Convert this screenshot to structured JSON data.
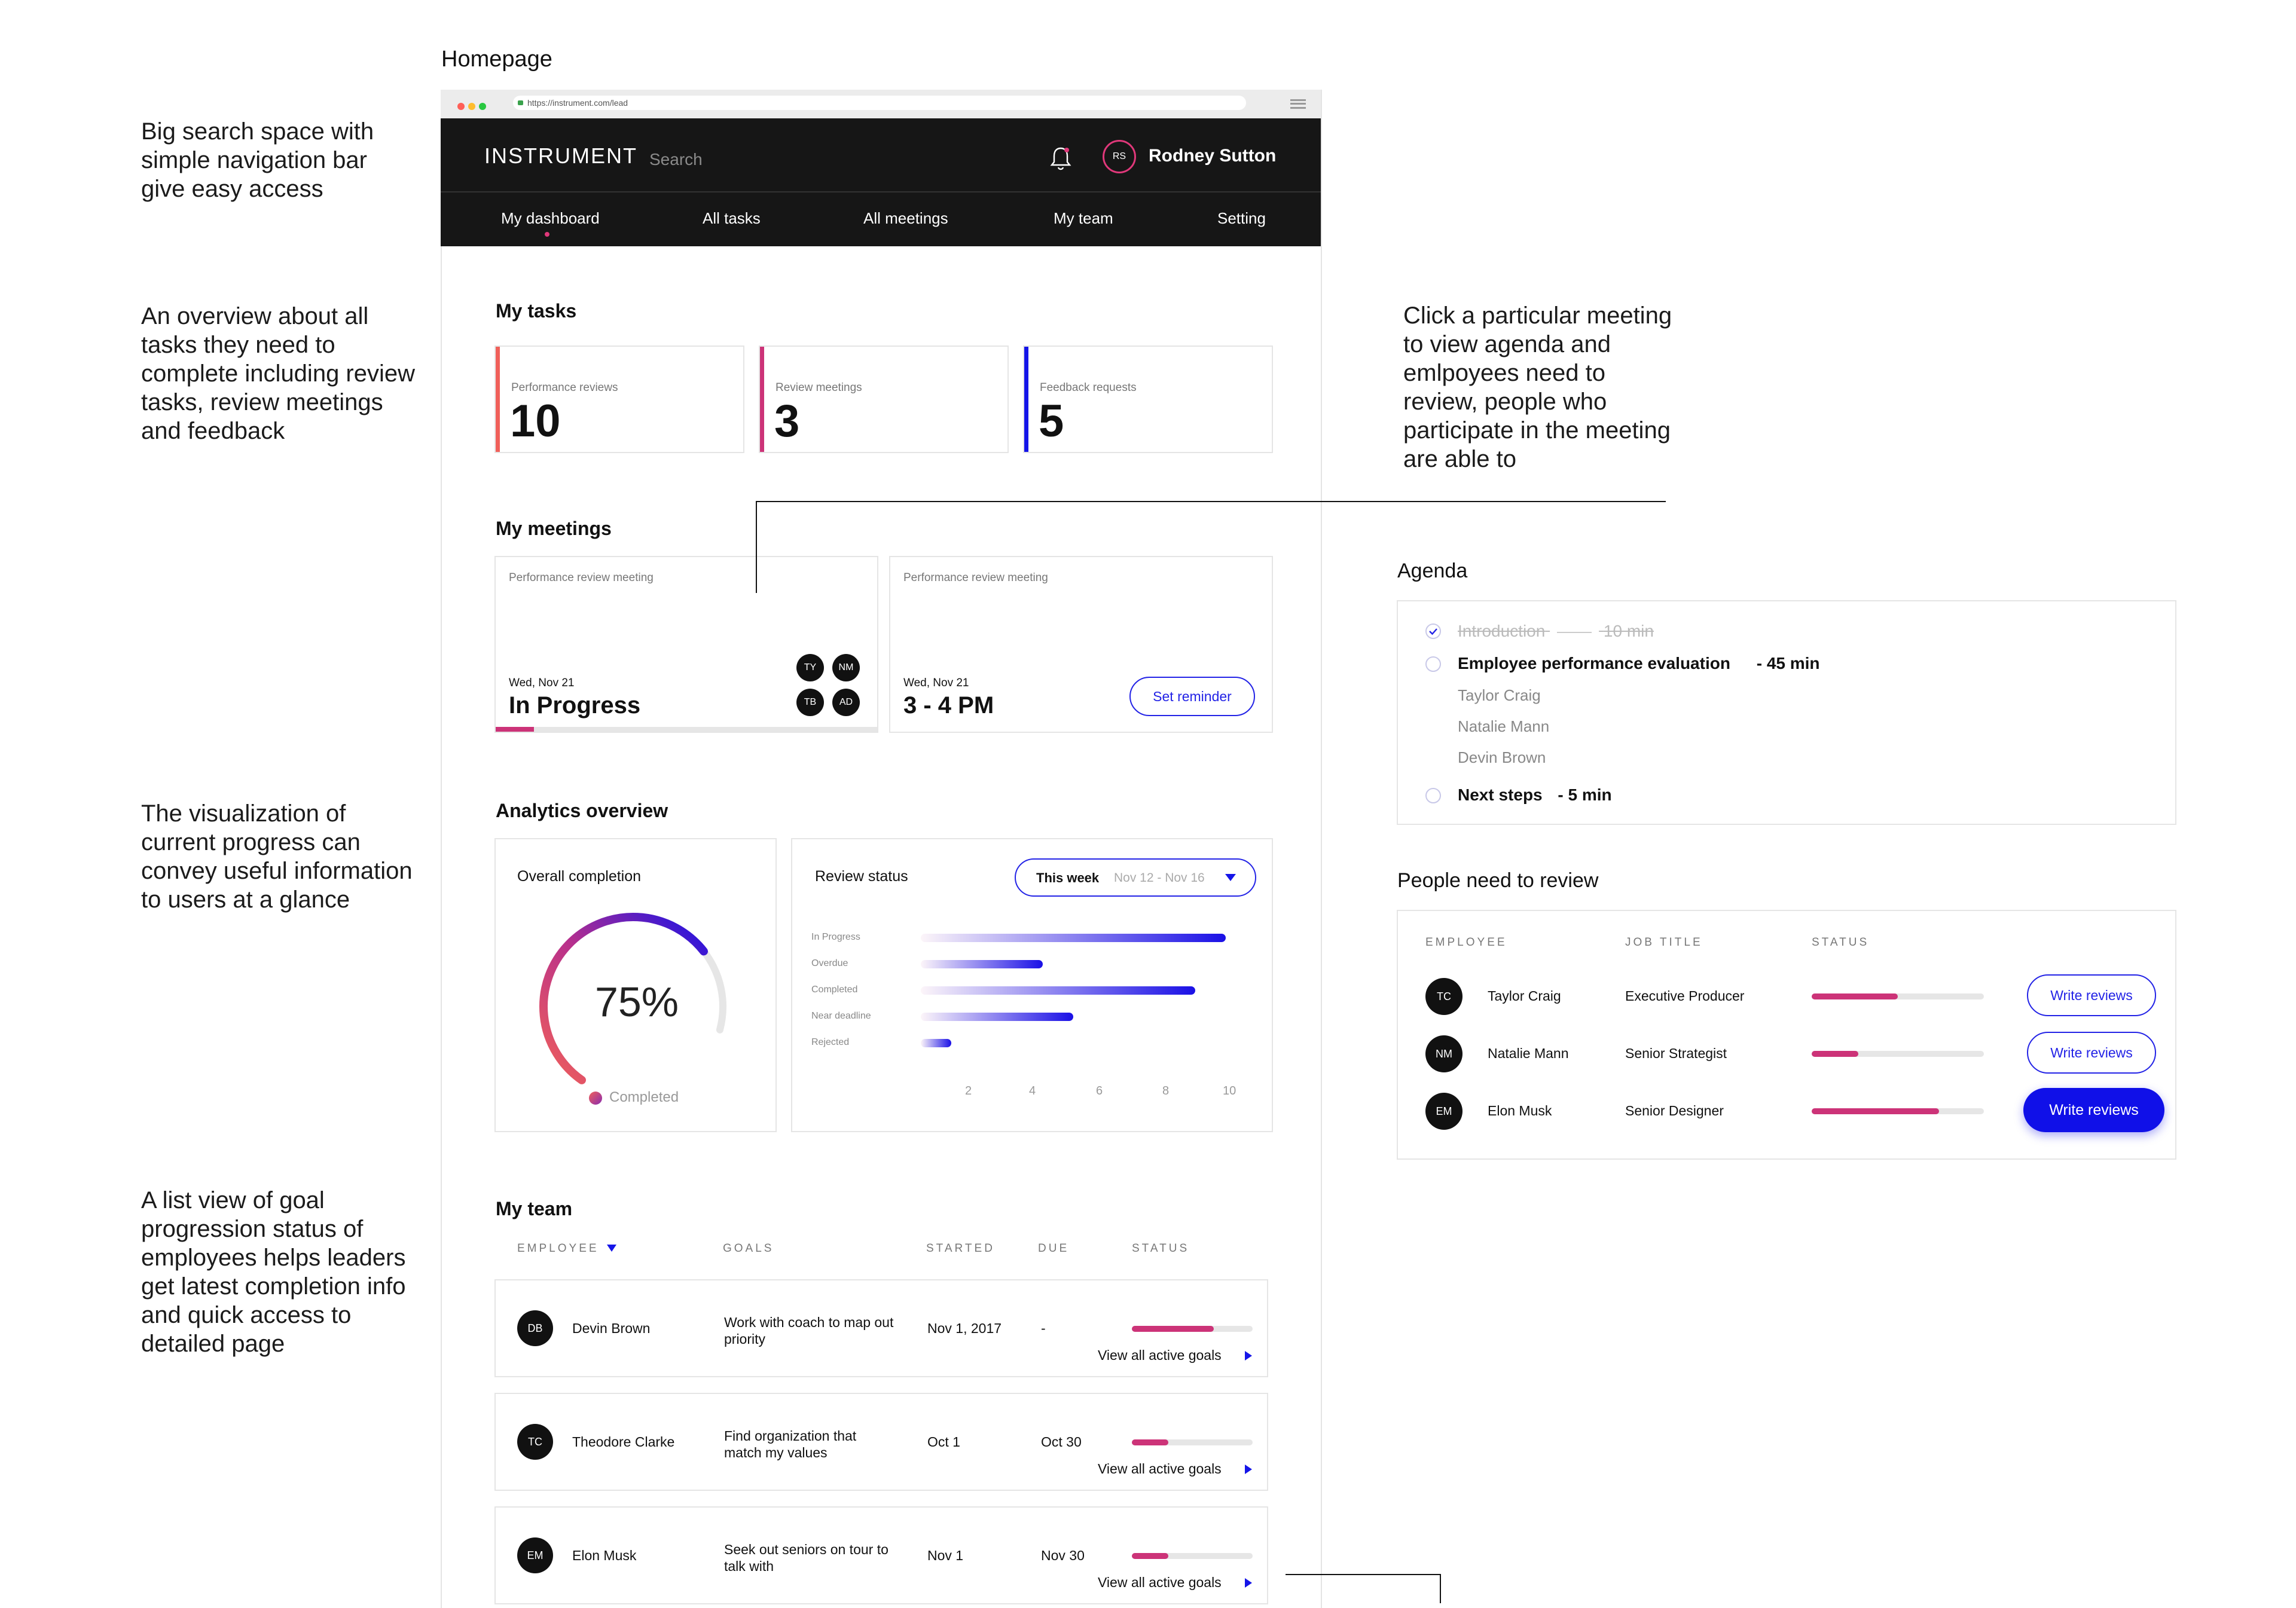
{
  "page_label": "Homepage",
  "annotations": {
    "search": "Big search space with simple navigation bar give easy access",
    "tasks": "An overview about all tasks they need to complete including review tasks, review meetings and feedback",
    "visualization": "The visualization of current progress can convey useful information to users at a glance",
    "list_view": "A list view of goal progression status of employees helps leaders get latest completion info and quick access to detailed page",
    "meeting": "Click a particular meeting to view agenda and emlpoyees need to review, people who participate in the meeting are able to"
  },
  "browser": {
    "url": "https://instrument.com/lead"
  },
  "header": {
    "brand": "INSTRUMENT",
    "search_placeholder": "Search",
    "user_initials": "RS",
    "user_name": "Rodney Sutton",
    "accent": "#e0387a"
  },
  "nav": {
    "tabs": [
      "My dashboard",
      "All tasks",
      "All meetings",
      "My team",
      "Setting"
    ],
    "active": "My dashboard"
  },
  "tasks": {
    "title": "My tasks",
    "cards": [
      {
        "label": "Performance reviews",
        "value": "10",
        "color": "#f0605a"
      },
      {
        "label": "Review meetings",
        "value": "3",
        "color": "#cc3378"
      },
      {
        "label": "Feedback requests",
        "value": "5",
        "color": "#1515e8"
      }
    ]
  },
  "meetings": {
    "title": "My meetings",
    "items": [
      {
        "label": "Performance review meeting",
        "date": "Wed, Nov 21",
        "status": "In Progress",
        "participants": [
          "TY",
          "NM",
          "TB",
          "AD"
        ],
        "progress": 0.1
      },
      {
        "label": "Performance review meeting",
        "date": "Wed, Nov 21",
        "status": "3 - 4 PM",
        "button": "Set reminder"
      }
    ]
  },
  "analytics": {
    "title": "Analytics overview",
    "completion": {
      "title": "Overall completion",
      "value": "75%",
      "percent": 75,
      "legend": "Completed"
    },
    "review_status": {
      "title": "Review status",
      "range_label": "This week",
      "range_dates": "Nov 12 - Nov 16"
    }
  },
  "chart_data": {
    "type": "bar",
    "orientation": "horizontal",
    "title": "Review status",
    "categories": [
      "In Progress",
      "Overdue",
      "Completed",
      "Near deadline",
      "Rejected"
    ],
    "values": [
      10,
      4,
      9,
      5,
      1
    ],
    "xticks": [
      "2",
      "4",
      "6",
      "8",
      "10"
    ],
    "xlim": [
      0,
      10
    ]
  },
  "team": {
    "title": "My team",
    "columns": [
      "EMPLOYEE",
      "GOALS",
      "STARTED",
      "DUE",
      "STATUS"
    ],
    "link_label": "View all active goals",
    "rows": [
      {
        "initials": "DB",
        "name": "Devin Brown",
        "goal": "Work with coach to map out priority",
        "started": "Nov 1, 2017",
        "due": "-",
        "progress": 0.68
      },
      {
        "initials": "TC",
        "name": "Theodore Clarke",
        "goal": "Find organization that match my values",
        "started": "Oct 1",
        "due": "Oct 30",
        "progress": 0.3
      },
      {
        "initials": "EM",
        "name": "Elon Musk",
        "goal": "Seek out seniors on tour to talk with",
        "started": "Nov 1",
        "due": "Nov 30",
        "progress": 0.3
      }
    ]
  },
  "agenda": {
    "title": "Agenda",
    "items": [
      {
        "text": "Introduction",
        "time": "10 min",
        "done": true
      },
      {
        "text": "Employee performance evaluation",
        "time": "- 45 min",
        "done": false,
        "people": [
          "Taylor Craig",
          "Natalie Mann",
          "Devin Brown"
        ]
      },
      {
        "text": "Next steps",
        "time": "- 5 min",
        "done": false
      }
    ]
  },
  "review_people": {
    "title": "People need to review",
    "columns": [
      "EMPLOYEE",
      "JOB TITLE",
      "STATUS"
    ],
    "rows": [
      {
        "initials": "TC",
        "name": "Taylor Craig",
        "title": "Executive Producer",
        "progress": 0.5,
        "button": "Write reviews"
      },
      {
        "initials": "NM",
        "name": "Natalie Mann",
        "title": "Senior Strategist",
        "progress": 0.27,
        "button": "Write reviews"
      },
      {
        "initials": "EM",
        "name": "Elon Musk",
        "title": "Senior Designer",
        "progress": 0.74,
        "button": "Write reviews"
      }
    ]
  }
}
